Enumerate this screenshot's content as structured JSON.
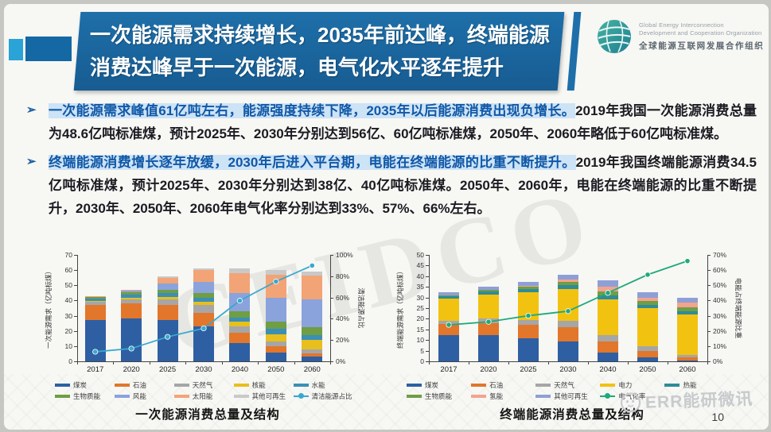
{
  "title": {
    "line1": "一次能源需求持续增长，2035年前达峰，终端能源",
    "line2": "消费达峰早于一次能源，电气化水平逐年提升"
  },
  "logo": {
    "en_line1": "Global Energy Interconnection",
    "en_line2": "Development and Cooperation Organization",
    "zh": "全球能源互联网发展合作组织"
  },
  "bullet_marker": "➢",
  "bullets": [
    {
      "highlight": "一次能源需求峰值61亿吨左右，能源强度持续下降，2035年以后能源消费出现负增长。",
      "body": "2019年我国一次能源消费总量为48.6亿吨标准煤，预计2025年、2030年分别达到56亿、60亿吨标准煤，2050年、2060年略低于60亿吨标准煤。"
    },
    {
      "highlight": "终端能源消费增长逐年放缓，2030年后进入平台期，电能在终端能源的比重不断提升。",
      "body": "2019年我国终端能源消费34.5亿吨标准煤，预计2025年、2030年分别达到38亿、40亿吨标准煤。2050年、2060年，电能在终端能源的比重不断提升，2030年、2050年、2060年电气化率分别达到33%、57%、66%左右。"
    }
  ],
  "colors": {
    "banner_blue": "#1e6fa9",
    "accent_light_blue": "#2aa3d6",
    "accent_dark_blue": "#1468a4",
    "highlight_text": "#1058a7",
    "highlight_bg": "#cde3f6"
  },
  "chart_data": [
    {
      "type": "bar",
      "subtype": "stacked-bar-with-line",
      "caption": "一次能源消费总量及结构",
      "categories": [
        "2017",
        "2020",
        "2025",
        "2030",
        "2040",
        "2050",
        "2060"
      ],
      "left_axis": {
        "label": "一次能源需求（亿吨标煤）",
        "min": 0,
        "max": 70,
        "step": 10
      },
      "right_axis": {
        "label": "清洁能源占比",
        "min": 0,
        "max": 100,
        "step": 20,
        "suffix": "%"
      },
      "series": [
        {
          "name": "煤炭",
          "color": "#2e5fa3",
          "values": [
            27,
            28,
            27,
            23,
            12,
            6,
            3
          ]
        },
        {
          "name": "石油",
          "color": "#e2762b",
          "values": [
            10,
            10,
            10,
            9,
            7,
            4,
            2
          ]
        },
        {
          "name": "天然气",
          "color": "#a6a6a6",
          "values": [
            2,
            3,
            4,
            5,
            4,
            3,
            3
          ]
        },
        {
          "name": "核能",
          "color": "#e8bf1c",
          "values": [
            0.8,
            1,
            1.5,
            2,
            3,
            5,
            6
          ]
        },
        {
          "name": "水能",
          "color": "#3a8fb7",
          "values": [
            1.5,
            2,
            2.5,
            3,
            3,
            3.5,
            3.5
          ]
        },
        {
          "name": "生物质能",
          "color": "#6f9e44",
          "values": [
            1.2,
            1.5,
            2,
            3,
            4,
            4.5,
            5
          ]
        },
        {
          "name": "风能",
          "color": "#8aa3dc",
          "values": [
            0.3,
            0.8,
            4,
            7,
            12,
            16,
            18
          ]
        },
        {
          "name": "太阳能",
          "color": "#f2a477",
          "values": [
            0.2,
            0.7,
            4,
            8,
            13,
            15,
            16
          ]
        },
        {
          "name": "其他可再生",
          "color": "#c9c9c9",
          "values": [
            0,
            0,
            1,
            1,
            3,
            3,
            2.5
          ]
        }
      ],
      "line_series": {
        "name": "清洁能源占比",
        "color": "#39a8cd",
        "values": [
          9,
          12,
          23,
          31,
          57,
          75,
          90
        ]
      }
    },
    {
      "type": "bar",
      "subtype": "stacked-bar-with-line",
      "caption": "终端能源消费总量及结构",
      "categories": [
        "2017",
        "2020",
        "2025",
        "2030",
        "2040",
        "2050",
        "2060"
      ],
      "left_axis": {
        "label": "终端能源需求（亿吨标煤）",
        "min": 0,
        "max": 50,
        "step": 5
      },
      "right_axis": {
        "label": "电能占终端能源比重",
        "min": 0,
        "max": 70,
        "step": 10,
        "suffix": "%"
      },
      "series": [
        {
          "name": "煤炭",
          "color": "#2e5fa3",
          "values": [
            12.5,
            12.5,
            11,
            9.5,
            4,
            2,
            0.5
          ]
        },
        {
          "name": "石油",
          "color": "#e2762b",
          "values": [
            5,
            5.5,
            6,
            6.5,
            5.5,
            3,
            1.5
          ]
        },
        {
          "name": "天然气",
          "color": "#a6a6a6",
          "values": [
            1.5,
            2,
            2.5,
            3,
            3,
            2,
            1
          ]
        },
        {
          "name": "电力",
          "color": "#f2c211",
          "values": [
            10.5,
            11.5,
            13,
            15,
            16.5,
            18,
            19
          ]
        },
        {
          "name": "热能",
          "color": "#2e8b9a",
          "values": [
            1,
            1.5,
            1.5,
            2,
            2,
            1.5,
            1.5
          ]
        },
        {
          "name": "生物质能",
          "color": "#6f9e44",
          "values": [
            0.5,
            0.5,
            1,
            1.5,
            2,
            2,
            2
          ]
        },
        {
          "name": "氢能",
          "color": "#f2a48e",
          "values": [
            0,
            0,
            0.5,
            1,
            2,
            1.5,
            2
          ]
        },
        {
          "name": "其他可再生",
          "color": "#8f9fd6",
          "values": [
            1.5,
            1.5,
            2,
            2,
            3,
            2.5,
            2.5
          ]
        }
      ],
      "line_series": {
        "name": "电气化率",
        "color": "#1fa97c",
        "values": [
          24,
          26,
          30,
          33,
          45,
          57,
          66
        ]
      }
    }
  ],
  "background_watermark": "GEIDCO",
  "footer": {
    "watermark": "ERR能研微讯",
    "page_number": "10"
  }
}
